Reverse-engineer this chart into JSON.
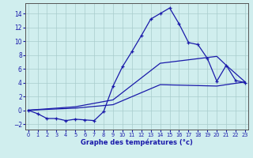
{
  "xlabel": "Graphe des températures (°c)",
  "background_color": "#d0eeee",
  "grid_color": "#a8cccc",
  "line_color": "#1a1aaa",
  "x_ticks": [
    0,
    1,
    2,
    3,
    4,
    5,
    6,
    7,
    8,
    9,
    10,
    11,
    12,
    13,
    14,
    15,
    16,
    17,
    18,
    19,
    20,
    21,
    22,
    23
  ],
  "y_ticks": [
    -2,
    0,
    2,
    4,
    6,
    8,
    10,
    12,
    14
  ],
  "xlim": [
    -0.3,
    23.3
  ],
  "ylim": [
    -2.8,
    15.5
  ],
  "line1_x": [
    0,
    1,
    2,
    3,
    4,
    5,
    6,
    7,
    8,
    9,
    10,
    11,
    12,
    13,
    14,
    15,
    16,
    17,
    18,
    19,
    20,
    21,
    22,
    23
  ],
  "line1_y": [
    0.0,
    -0.5,
    -1.2,
    -1.2,
    -1.5,
    -1.3,
    -1.4,
    -1.5,
    -0.2,
    3.5,
    6.3,
    8.5,
    10.8,
    13.2,
    14.0,
    14.8,
    12.5,
    9.8,
    9.5,
    7.5,
    4.2,
    6.5,
    4.3,
    4.0
  ],
  "line2_x": [
    0,
    5,
    9,
    14,
    20,
    21,
    23
  ],
  "line2_y": [
    0.0,
    0.5,
    1.5,
    6.8,
    7.8,
    6.5,
    4.1
  ],
  "line3_x": [
    0,
    5,
    9,
    14,
    20,
    23
  ],
  "line3_y": [
    0.0,
    0.3,
    0.8,
    3.7,
    3.5,
    4.1
  ]
}
